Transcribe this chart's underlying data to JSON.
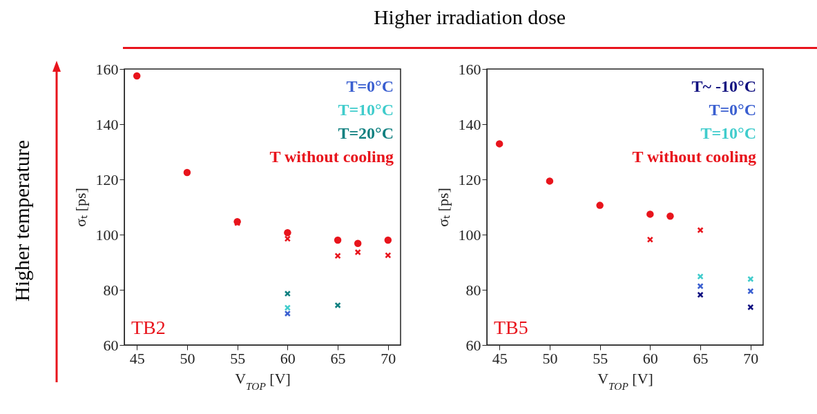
{
  "chart_data": [
    {
      "type": "scatter",
      "title": "Higher irradiation dose",
      "xlabel": "V$_{TOP}$ [V]",
      "ylabel": "σₜ [ps]",
      "annotations": [
        "TB2",
        "Higher temperature"
      ],
      "xlim": [
        43.75,
        71.25
      ],
      "ylim": [
        60,
        160
      ],
      "xticks": [
        45,
        50,
        55,
        60,
        65,
        70
      ],
      "yticks": [
        60,
        80,
        100,
        120,
        140,
        160
      ],
      "grid": false,
      "legend": "top right",
      "series": [
        {
          "color": "#e8141c",
          "marker": "circle",
          "x": [
            45,
            50,
            55,
            60,
            65,
            67,
            70
          ],
          "values": [
            157.5,
            122.5,
            104.7,
            100.7,
            98.0,
            96.8,
            98.0
          ]
        },
        {
          "name": "T=0°C",
          "color": "#3a5fd0",
          "marker": "cross",
          "x": [
            60
          ],
          "values": [
            71.4
          ]
        },
        {
          "name": "T=10°C",
          "color": "#40cccc",
          "marker": "cross",
          "x": [
            60
          ],
          "values": [
            73.5
          ]
        },
        {
          "name": "T=20°C",
          "color": "#108080",
          "marker": "cross",
          "x": [
            60,
            65
          ],
          "values": [
            78.6,
            74.4
          ]
        },
        {
          "name": "T without cooling",
          "color": "#e8141c",
          "marker": "cross",
          "x": [
            55,
            60,
            65,
            67,
            70
          ],
          "values": [
            104.2,
            98.5,
            92.3,
            93.6,
            92.5
          ]
        }
      ]
    },
    {
      "type": "scatter",
      "xlabel": "V$_{TOP}$ [V]",
      "ylabel": "σₜ [ps]",
      "annotations": [
        "TB5"
      ],
      "xlim": [
        43.75,
        71.25
      ],
      "ylim": [
        60,
        160
      ],
      "xticks": [
        45,
        50,
        55,
        60,
        65,
        70
      ],
      "yticks": [
        60,
        80,
        100,
        120,
        140,
        160
      ],
      "grid": false,
      "legend": "top right",
      "series": [
        {
          "color": "#e8141c",
          "marker": "circle",
          "x": [
            45,
            50,
            55,
            60,
            62
          ],
          "values": [
            132.9,
            119.4,
            110.6,
            107.4,
            106.7
          ]
        },
        {
          "name": "T~ -10°C",
          "color": "#101080",
          "marker": "cross",
          "x": [
            65,
            70
          ],
          "values": [
            78.2,
            73.7
          ]
        },
        {
          "name": "T=0°C",
          "color": "#3a5fd0",
          "marker": "cross",
          "x": [
            65,
            70
          ],
          "values": [
            81.3,
            79.5
          ]
        },
        {
          "name": "T=10°C",
          "color": "#40cccc",
          "marker": "cross",
          "x": [
            65,
            70
          ],
          "values": [
            84.8,
            83.9
          ]
        },
        {
          "name": "T without cooling",
          "color": "#e8141c",
          "marker": "cross",
          "x": [
            60,
            65
          ],
          "values": [
            98.2,
            101.6
          ]
        }
      ]
    }
  ]
}
